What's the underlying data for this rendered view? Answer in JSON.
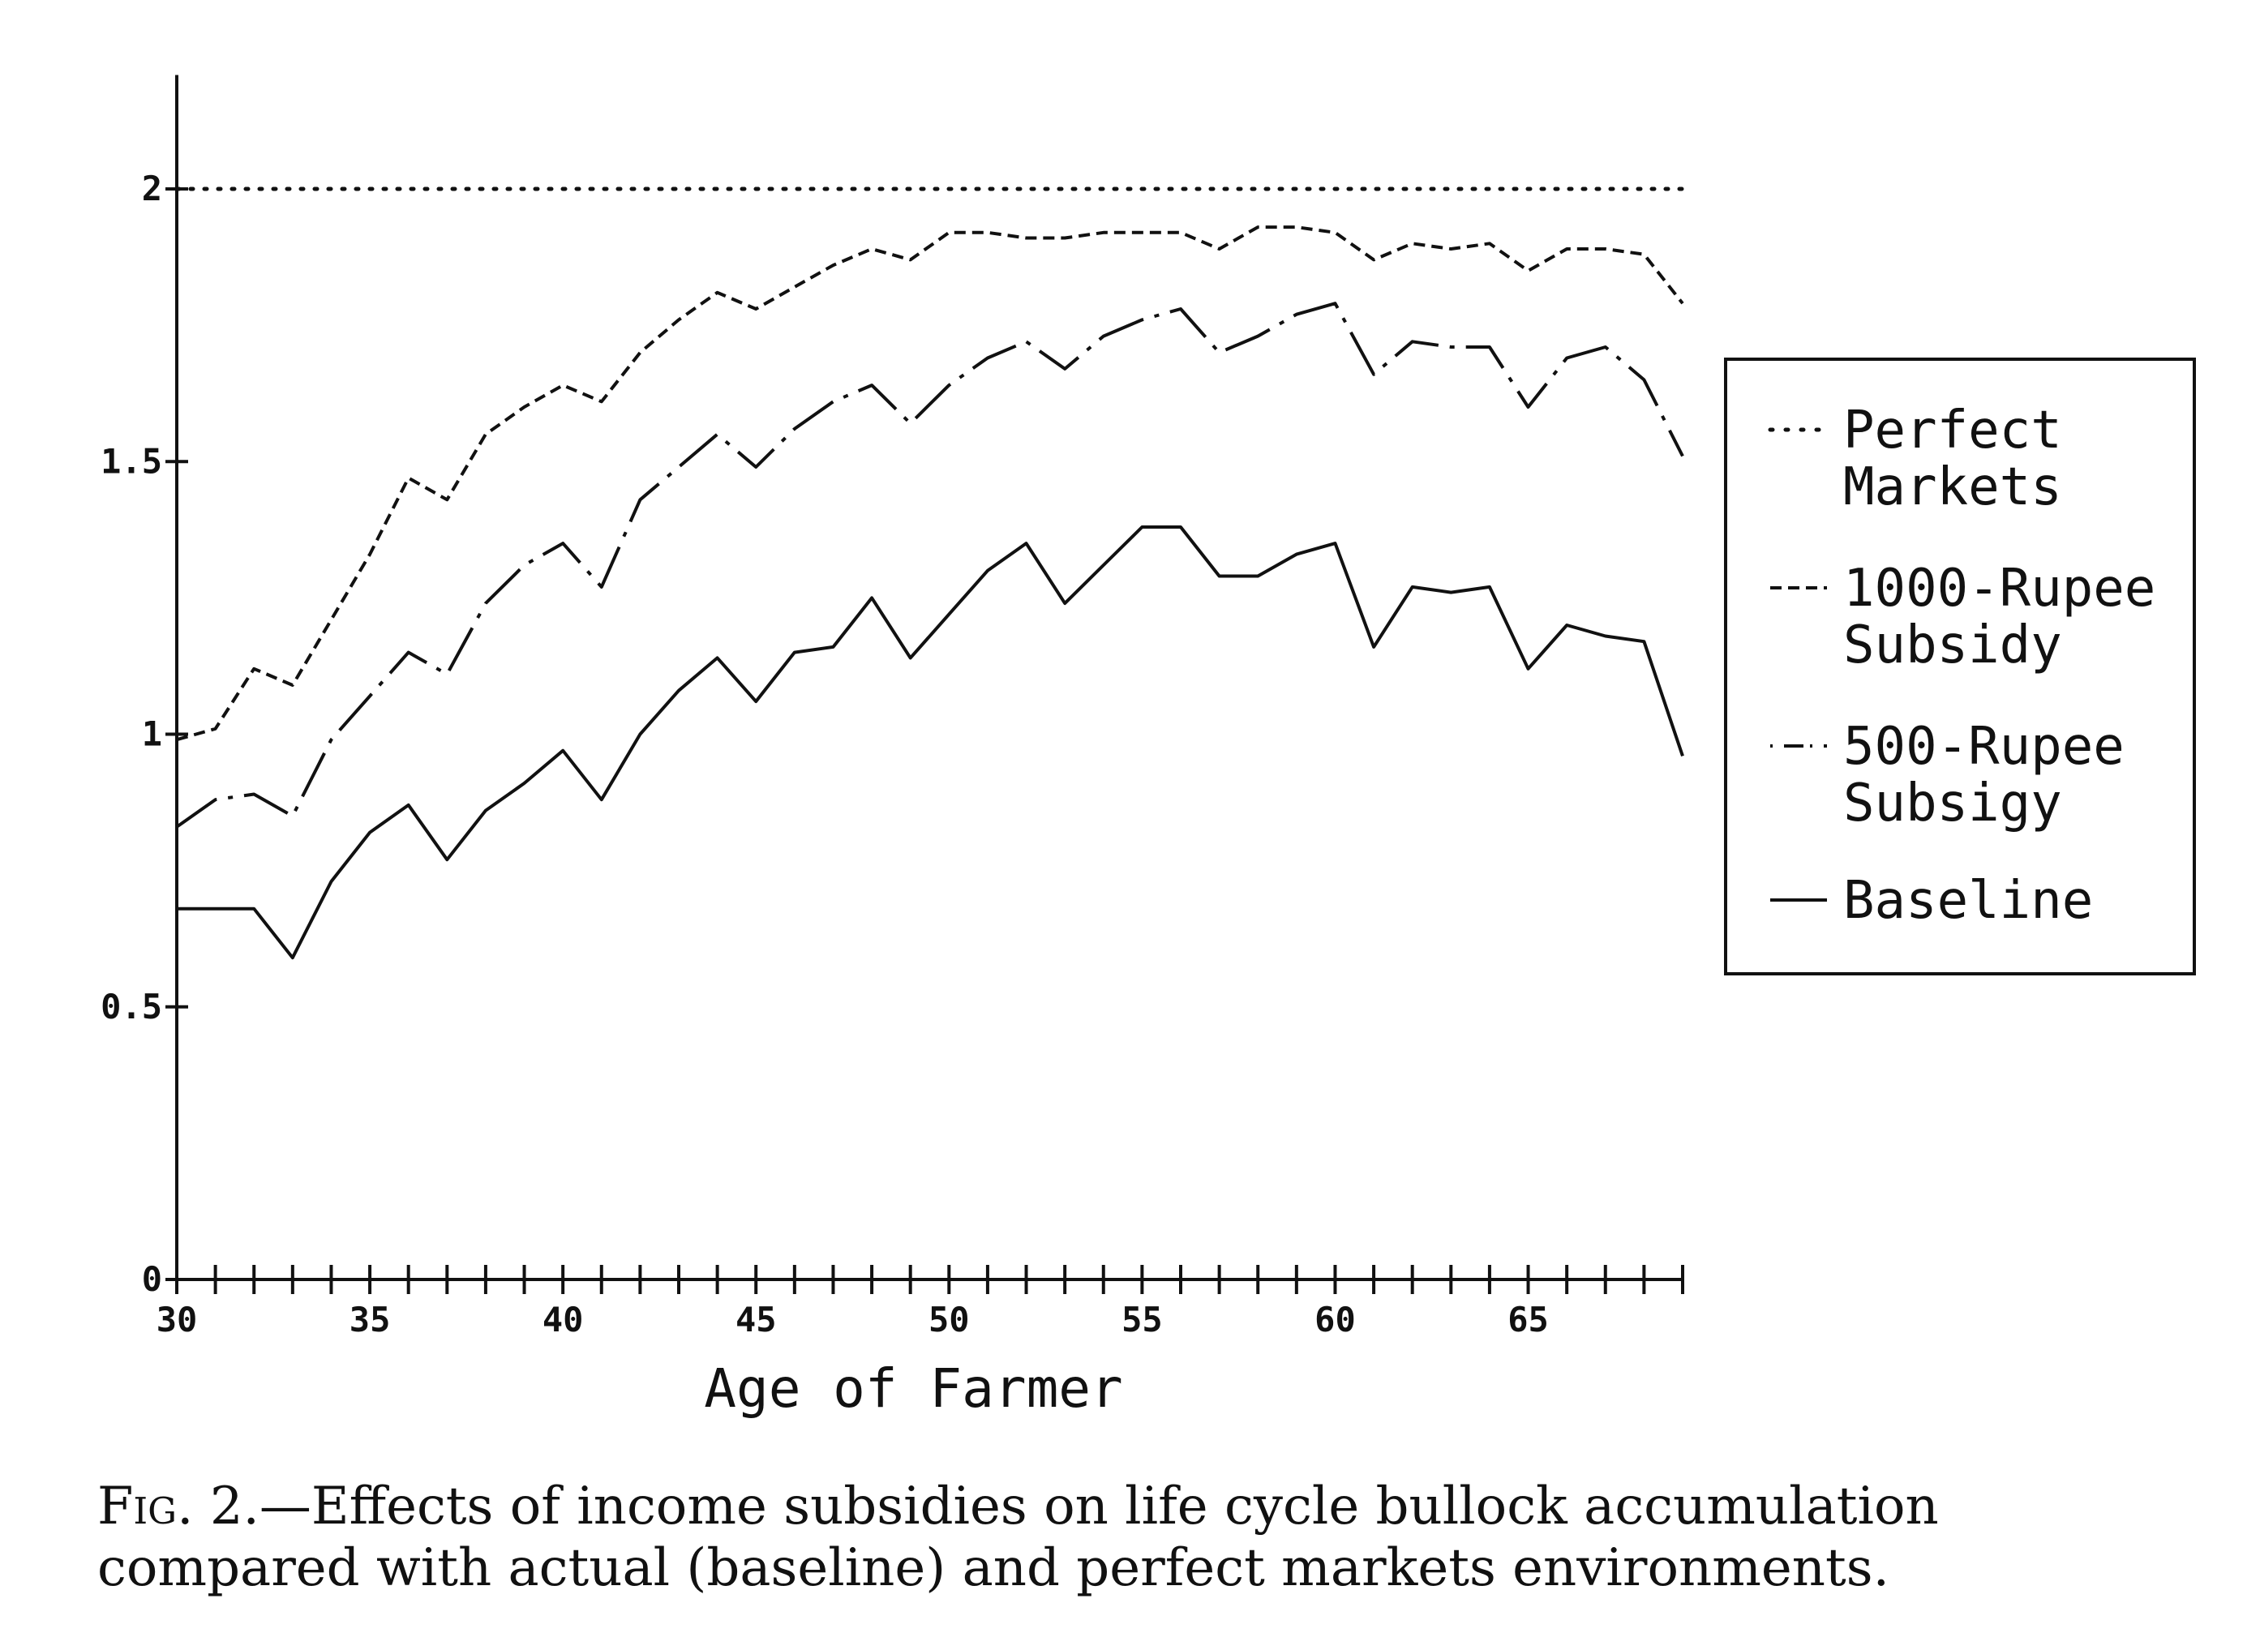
{
  "chart_data": {
    "type": "line",
    "title": "",
    "xlabel": "Age of Farmer",
    "ylabel": "",
    "xlim": [
      30,
      69
    ],
    "ylim": [
      0,
      2.2
    ],
    "x_ticks": [
      30,
      35,
      40,
      45,
      50,
      55,
      60,
      65
    ],
    "y_ticks": [
      0,
      0.5,
      1,
      1.5,
      2
    ],
    "y_tick_labels": [
      "0",
      "0.5",
      "1",
      "1.5",
      "2"
    ],
    "grid": false,
    "legend_position": "right",
    "x": [
      30,
      31,
      32,
      33,
      34,
      35,
      36,
      37,
      38,
      39,
      40,
      41,
      42,
      43,
      44,
      45,
      46,
      47,
      48,
      49,
      50,
      51,
      52,
      53,
      54,
      55,
      56,
      57,
      58,
      59,
      60,
      61,
      62,
      63,
      64,
      65,
      66,
      67,
      68,
      69
    ],
    "series": [
      {
        "name": "Perfect Markets",
        "style": "dotted",
        "values": [
          2,
          2,
          2,
          2,
          2,
          2,
          2,
          2,
          2,
          2,
          2,
          2,
          2,
          2,
          2,
          2,
          2,
          2,
          2,
          2,
          2,
          2,
          2,
          2,
          2,
          2,
          2,
          2,
          2,
          2,
          2,
          2,
          2,
          2,
          2,
          2,
          2,
          2,
          2,
          2
        ]
      },
      {
        "name": "1000-Rupee Subsidy",
        "style": "dashed",
        "values": [
          0.99,
          1.01,
          1.12,
          1.09,
          1.21,
          1.33,
          1.47,
          1.43,
          1.55,
          1.6,
          1.64,
          1.61,
          1.7,
          1.76,
          1.81,
          1.78,
          1.82,
          1.86,
          1.89,
          1.87,
          1.92,
          1.92,
          1.91,
          1.91,
          1.92,
          1.92,
          1.92,
          1.89,
          1.93,
          1.93,
          1.92,
          1.87,
          1.9,
          1.89,
          1.9,
          1.85,
          1.89,
          1.89,
          1.88,
          1.79
        ]
      },
      {
        "name": "500-Rupee Subsigy",
        "style": "dashdot",
        "values": [
          0.83,
          0.88,
          0.89,
          0.85,
          0.99,
          1.07,
          1.15,
          1.11,
          1.24,
          1.31,
          1.35,
          1.27,
          1.43,
          1.49,
          1.55,
          1.49,
          1.56,
          1.61,
          1.64,
          1.57,
          1.64,
          1.69,
          1.72,
          1.67,
          1.73,
          1.76,
          1.78,
          1.7,
          1.73,
          1.77,
          1.79,
          1.66,
          1.72,
          1.71,
          1.71,
          1.6,
          1.69,
          1.71,
          1.65,
          1.51
        ]
      },
      {
        "name": "Baseline",
        "style": "solid",
        "values": [
          0.68,
          0.68,
          0.68,
          0.59,
          0.73,
          0.82,
          0.87,
          0.77,
          0.86,
          0.91,
          0.97,
          0.88,
          1.0,
          1.08,
          1.14,
          1.06,
          1.15,
          1.16,
          1.25,
          1.14,
          1.22,
          1.3,
          1.35,
          1.24,
          1.31,
          1.38,
          1.38,
          1.29,
          1.29,
          1.33,
          1.35,
          1.16,
          1.27,
          1.26,
          1.27,
          1.12,
          1.2,
          1.18,
          1.17,
          0.96
        ]
      }
    ],
    "legend": [
      {
        "line1": "Perfect",
        "line2": "Markets",
        "style": "dotted"
      },
      {
        "line1": "1000-Rupee",
        "line2": "Subsidy",
        "style": "dashed"
      },
      {
        "line1": "500-Rupee",
        "line2": "Subsigy",
        "style": "dashdot"
      },
      {
        "line1": "Baseline",
        "line2": "",
        "style": "solid"
      }
    ]
  },
  "caption": {
    "label": "Fig. 2.",
    "text": "—Effects of income subsidies on life cycle bullock accumulation compared with actual (baseline) and perfect markets environments."
  },
  "colors": {
    "ink": "#111111",
    "background": "#ffffff"
  }
}
